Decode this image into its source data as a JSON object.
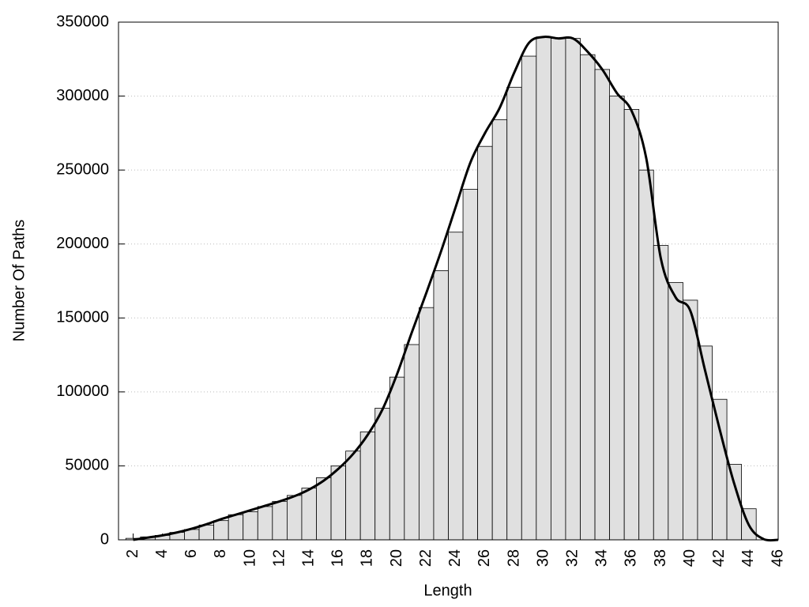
{
  "chart_data": {
    "type": "histogram",
    "xlabel": "Length",
    "ylabel": "Number Of Paths",
    "bins": [
      1.5,
      2.5,
      3.5,
      4.5,
      5.5,
      6.5,
      7.5,
      8.5,
      9.5,
      10.5,
      11.5,
      12.5,
      13.5,
      14.5,
      15.5,
      16.5,
      17.5,
      18.5,
      19.5,
      20.5,
      21.5,
      22.5,
      23.5,
      24.5,
      25.5,
      26.5,
      27.5,
      28.5,
      29.5,
      30.5,
      31.5,
      32.5,
      33.5,
      34.5,
      35.5,
      36.5,
      37.5,
      38.5,
      39.5,
      40.5,
      41.5,
      42.5,
      43.5,
      44.5
    ],
    "counts": [
      1000,
      2000,
      3000,
      5000,
      7000,
      10000,
      13000,
      17000,
      19000,
      22500,
      26000,
      30000,
      35000,
      42000,
      50000,
      60000,
      73000,
      89000,
      110000,
      132000,
      157000,
      182000,
      208000,
      237000,
      266000,
      284000,
      306000,
      327000,
      340000,
      339000,
      339000,
      328000,
      318000,
      300000,
      291000,
      250000,
      199000,
      174000,
      162000,
      131000,
      95000,
      51000,
      21000
    ],
    "bar_color": "#e0e0e0",
    "edge_color": "#000000",
    "curve": {
      "color": "#000000",
      "x": [
        2,
        3,
        4,
        5,
        6,
        7,
        8,
        9,
        10,
        11,
        12,
        13,
        14,
        15,
        16,
        17,
        18,
        19,
        20,
        21,
        22,
        23,
        24,
        25,
        26,
        27,
        28,
        29,
        30,
        31,
        32,
        33,
        34,
        35,
        36,
        37,
        38,
        39,
        40,
        41,
        42,
        43,
        44,
        45,
        46
      ],
      "values": [
        0,
        1500,
        3000,
        5000,
        7500,
        10500,
        14000,
        17000,
        20000,
        23000,
        26000,
        29500,
        34000,
        40000,
        48000,
        58000,
        71000,
        88000,
        112000,
        140000,
        167000,
        195000,
        225000,
        255000,
        275000,
        292000,
        316000,
        336000,
        340000,
        339000,
        339000,
        330000,
        318000,
        302000,
        290000,
        258000,
        190000,
        164000,
        155000,
        115000,
        75000,
        38000,
        10000,
        500,
        0
      ]
    },
    "xlim": [
      1,
      46
    ],
    "ylim": [
      0,
      350000
    ],
    "xticks": [
      2,
      4,
      6,
      8,
      10,
      12,
      14,
      16,
      18,
      20,
      22,
      24,
      26,
      28,
      30,
      32,
      34,
      36,
      38,
      40,
      42,
      44,
      46
    ],
    "yticks": [
      0,
      50000,
      100000,
      150000,
      200000,
      250000,
      300000,
      350000
    ],
    "grid": true
  }
}
